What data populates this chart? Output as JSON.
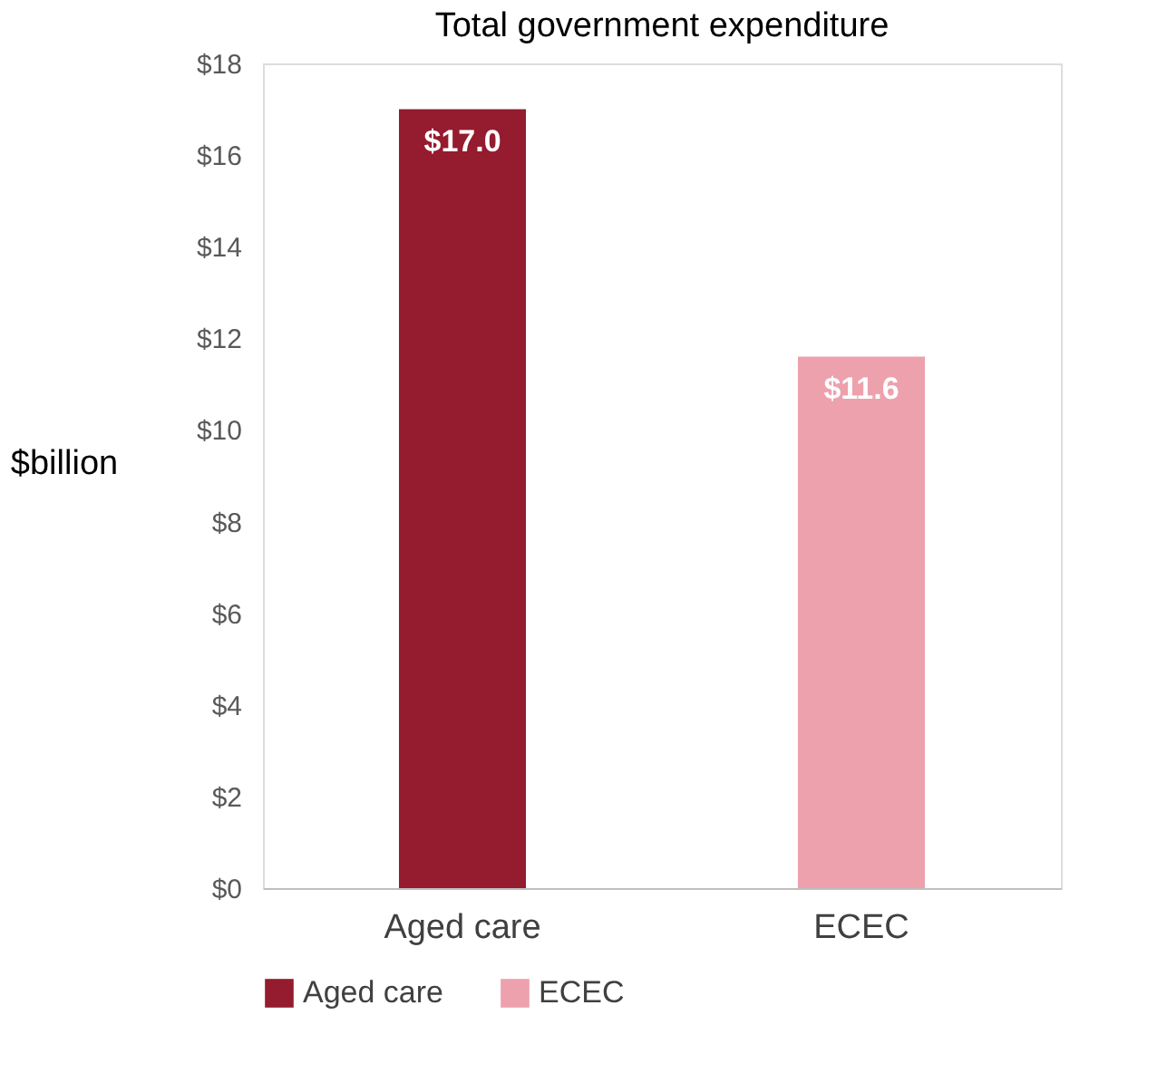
{
  "chart_data": {
    "type": "bar",
    "title": "Total government expenditure",
    "ylabel": "$billion",
    "categories": [
      "Aged care",
      "ECEC"
    ],
    "series": [
      {
        "name": "Aged care",
        "color": "#951b2f",
        "values": [
          17.0,
          null
        ]
      },
      {
        "name": "ECEC",
        "color": "#eda1ad",
        "values": [
          null,
          11.6
        ]
      }
    ],
    "value_labels": [
      [
        "$17.0",
        null
      ],
      [
        null,
        "$11.6"
      ]
    ],
    "ylim": [
      0,
      18
    ],
    "yticks": [
      {
        "value": 0,
        "label": "$0"
      },
      {
        "value": 2,
        "label": "$2"
      },
      {
        "value": 4,
        "label": "$4"
      },
      {
        "value": 6,
        "label": "$6"
      },
      {
        "value": 8,
        "label": "$8"
      },
      {
        "value": 10,
        "label": "$10"
      },
      {
        "value": 12,
        "label": "$12"
      },
      {
        "value": 14,
        "label": "$14"
      },
      {
        "value": 16,
        "label": "$16"
      },
      {
        "value": 18,
        "label": "$18"
      }
    ],
    "grid": false,
    "legend": "bottom"
  }
}
